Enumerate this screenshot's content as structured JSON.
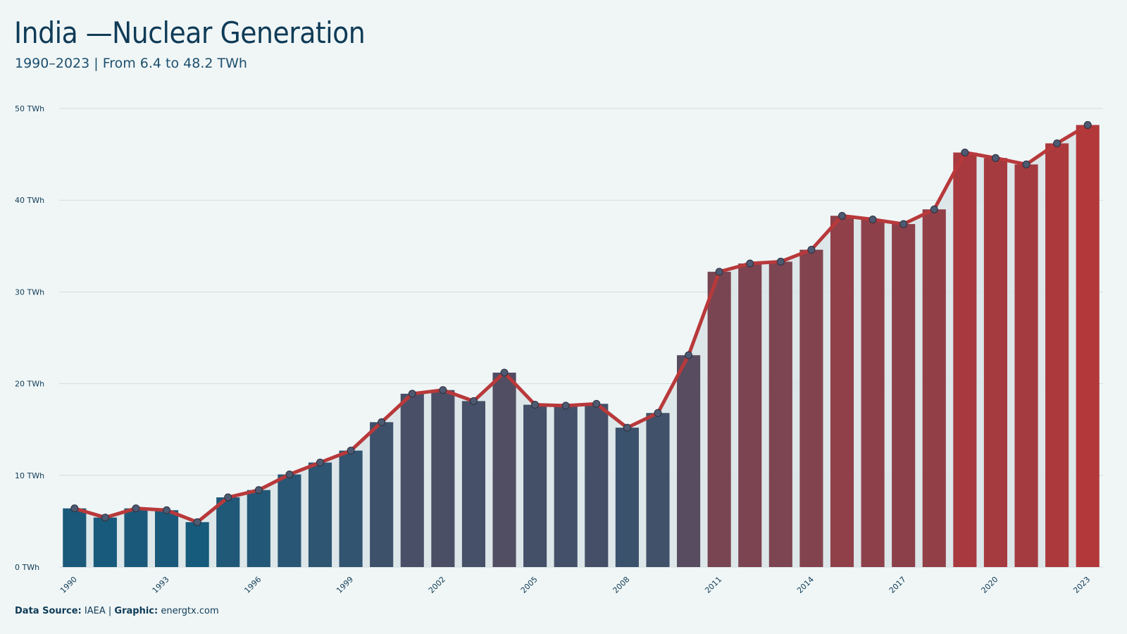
{
  "header": {
    "title": "India —Nuclear Generation",
    "subtitle": "1990–2023 | From 6.4 to 48.2 TWh"
  },
  "footer": {
    "source_label": "Data Source:",
    "source_value": "IAEA",
    "separator": "|",
    "graphic_label": "Graphic:",
    "graphic_value": "energtx.com"
  },
  "colors": {
    "background": "#f0f6f6",
    "bar_start": "#165a7c",
    "bar_end": "#b3383a",
    "line": "#b8393b",
    "point_fill": "#4e5a72",
    "area_fill": "#d9e4e6",
    "grid": "#d3dcde",
    "text": "#0f3b57"
  },
  "chart_data": {
    "type": "bar",
    "title": "India —Nuclear Generation",
    "subtitle": "1990–2023 | From 6.4 to 48.2 TWh",
    "unit": "TWh",
    "x": [
      1990,
      1991,
      1992,
      1993,
      1994,
      1995,
      1996,
      1997,
      1998,
      1999,
      2000,
      2001,
      2002,
      2003,
      2004,
      2005,
      2006,
      2007,
      2008,
      2009,
      2010,
      2011,
      2012,
      2013,
      2014,
      2015,
      2016,
      2017,
      2018,
      2019,
      2020,
      2021,
      2022,
      2023
    ],
    "values": [
      6.4,
      5.4,
      6.4,
      6.2,
      4.9,
      7.6,
      8.4,
      10.1,
      11.4,
      12.7,
      15.8,
      18.9,
      19.3,
      18.1,
      21.2,
      17.7,
      17.6,
      17.8,
      15.2,
      16.8,
      23.1,
      32.2,
      33.1,
      33.3,
      34.6,
      38.3,
      37.9,
      37.4,
      39.0,
      45.2,
      44.6,
      43.9,
      46.2,
      48.2
    ],
    "x_tick_labels": [
      "1990",
      "1993",
      "1996",
      "1999",
      "2002",
      "2005",
      "2008",
      "2011",
      "2014",
      "2017",
      "2020",
      "2023"
    ],
    "y_ticks": [
      0,
      10,
      20,
      30,
      40,
      50
    ],
    "y_tick_labels": [
      "0 TWh",
      "10 TWh",
      "20 TWh",
      "30 TWh",
      "40 TWh",
      "50 TWh"
    ],
    "ylim": [
      0,
      50
    ],
    "overlay": "line-with-points",
    "grid": "horizontal",
    "legend": "none"
  }
}
